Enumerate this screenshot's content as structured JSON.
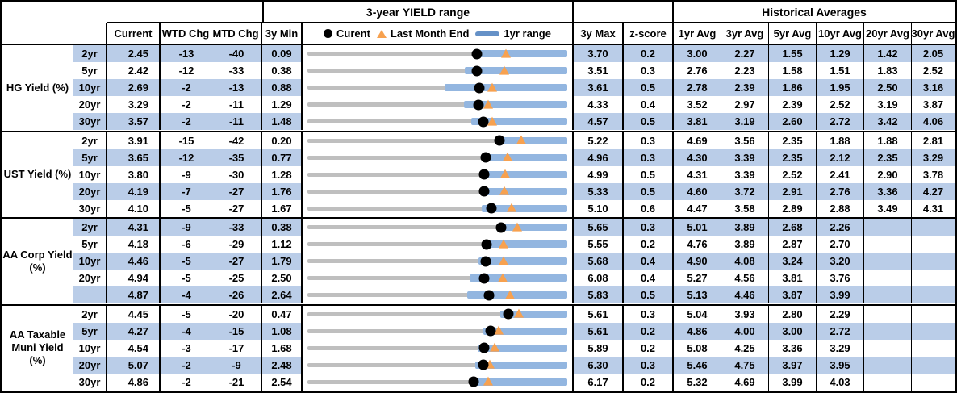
{
  "table": {
    "colors": {
      "row_band": "#bacde8",
      "bar_blue": "#93b6e0",
      "legend_blue": "#6591c7",
      "track_gray": "#bfbfbf",
      "marker_orange": "#f7a14f",
      "marker_black": "#000000"
    },
    "group_headers": {
      "range_title": "3-year YIELD range",
      "historical_title": "Historical Averages"
    },
    "col_headers": {
      "current": "Current",
      "wtd_chg": "WTD Chg",
      "mtd_chg": "MTD Chg",
      "min_3y": "3y Min",
      "max_3y": "3y Max",
      "z_score": "z-score",
      "averages": [
        "1yr Avg",
        "3yr Avg",
        "5yr Avg",
        "10yr Avg",
        "20yr Avg",
        "30yr Avg"
      ]
    },
    "legend": {
      "current": "Curent",
      "last_month_end": "Last Month End",
      "one_yr_range": "1yr range"
    }
  },
  "chart_data": {
    "type": "table",
    "title": "3-year YIELD range",
    "description": "Each row shows a 3-year yield range track (gray) from 3y Min to 3y Max, an overlaid 1yr range bar (blue) ending at the 3y Max, a black dot for Current and an orange triangle for Last Month End. WTD/MTD changes are in basis points.",
    "legend": [
      "Curent",
      "Last Month End",
      "1yr range"
    ],
    "sections": [
      {
        "label": "HG Yield (%)",
        "rows": [
          {
            "tenor": "2yr",
            "current": "2.45",
            "wtd": "-13",
            "mtd": "-40",
            "min": "0.09",
            "max": "3.70",
            "z": "0.2",
            "avg": [
              "3.00",
              "2.27",
              "1.55",
              "1.29",
              "1.42",
              "2.05"
            ],
            "last_month_end": 2.85,
            "yr1_low": 2.39
          },
          {
            "tenor": "5yr",
            "current": "2.42",
            "wtd": "-12",
            "mtd": "-33",
            "min": "0.38",
            "max": "3.51",
            "z": "0.3",
            "avg": [
              "2.76",
              "2.23",
              "1.58",
              "1.51",
              "1.83",
              "2.52"
            ],
            "last_month_end": 2.75,
            "yr1_low": 2.28
          },
          {
            "tenor": "10yr",
            "current": "2.69",
            "wtd": "-2",
            "mtd": "-13",
            "min": "0.88",
            "max": "3.61",
            "z": "0.5",
            "avg": [
              "2.78",
              "2.39",
              "1.86",
              "1.95",
              "2.50",
              "3.16"
            ],
            "last_month_end": 2.82,
            "yr1_low": 2.32
          },
          {
            "tenor": "20yr",
            "current": "3.29",
            "wtd": "-2",
            "mtd": "-11",
            "min": "1.29",
            "max": "4.33",
            "z": "0.4",
            "avg": [
              "3.52",
              "2.97",
              "2.39",
              "2.52",
              "3.19",
              "3.87"
            ],
            "last_month_end": 3.4,
            "yr1_low": 3.12
          },
          {
            "tenor": "30yr",
            "current": "3.57",
            "wtd": "-2",
            "mtd": "-11",
            "min": "1.48",
            "max": "4.57",
            "z": "0.5",
            "avg": [
              "3.81",
              "3.19",
              "2.60",
              "2.72",
              "3.42",
              "4.06"
            ],
            "last_month_end": 3.68,
            "yr1_low": 3.43
          }
        ]
      },
      {
        "label": "UST Yield (%)",
        "rows": [
          {
            "tenor": "2yr",
            "current": "3.91",
            "wtd": "-15",
            "mtd": "-42",
            "min": "0.20",
            "max": "5.22",
            "z": "0.3",
            "avg": [
              "4.69",
              "3.56",
              "2.35",
              "1.88",
              "1.88",
              "2.81"
            ],
            "last_month_end": 4.33,
            "yr1_low": 3.87
          },
          {
            "tenor": "5yr",
            "current": "3.65",
            "wtd": "-12",
            "mtd": "-35",
            "min": "0.77",
            "max": "4.96",
            "z": "0.3",
            "avg": [
              "4.30",
              "3.39",
              "2.35",
              "2.12",
              "2.35",
              "3.29"
            ],
            "last_month_end": 4.0,
            "yr1_low": 3.63
          },
          {
            "tenor": "10yr",
            "current": "3.80",
            "wtd": "-9",
            "mtd": "-30",
            "min": "1.28",
            "max": "4.99",
            "z": "0.5",
            "avg": [
              "4.31",
              "3.39",
              "2.52",
              "2.41",
              "2.90",
              "3.78"
            ],
            "last_month_end": 4.1,
            "yr1_low": 3.76
          },
          {
            "tenor": "20yr",
            "current": "4.19",
            "wtd": "-7",
            "mtd": "-27",
            "min": "1.76",
            "max": "5.33",
            "z": "0.5",
            "avg": [
              "4.60",
              "3.72",
              "2.91",
              "2.76",
              "3.36",
              "4.27"
            ],
            "last_month_end": 4.46,
            "yr1_low": 4.13
          },
          {
            "tenor": "30yr",
            "current": "4.10",
            "wtd": "-5",
            "mtd": "-27",
            "min": "1.67",
            "max": "5.10",
            "z": "0.6",
            "avg": [
              "4.47",
              "3.58",
              "2.89",
              "2.88",
              "3.49",
              "4.31"
            ],
            "last_month_end": 4.37,
            "yr1_low": 3.97
          }
        ]
      },
      {
        "label": "AA Corp Yield\n(%)",
        "rows": [
          {
            "tenor": "2yr",
            "current": "4.31",
            "wtd": "-9",
            "mtd": "-33",
            "min": "0.38",
            "max": "5.65",
            "z": "0.3",
            "avg": [
              "5.01",
              "3.89",
              "2.68",
              "2.26",
              "",
              ""
            ],
            "last_month_end": 4.64,
            "yr1_low": 4.26
          },
          {
            "tenor": "5yr",
            "current": "4.18",
            "wtd": "-6",
            "mtd": "-29",
            "min": "1.12",
            "max": "5.55",
            "z": "0.2",
            "avg": [
              "4.76",
              "3.89",
              "2.87",
              "2.70",
              "",
              ""
            ],
            "last_month_end": 4.47,
            "yr1_low": 4.15
          },
          {
            "tenor": "10yr",
            "current": "4.46",
            "wtd": "-5",
            "mtd": "-27",
            "min": "1.79",
            "max": "5.68",
            "z": "0.4",
            "avg": [
              "4.90",
              "4.08",
              "3.24",
              "3.20",
              "",
              ""
            ],
            "last_month_end": 4.73,
            "yr1_low": 4.35
          },
          {
            "tenor": "20yr",
            "current": "4.94",
            "wtd": "-5",
            "mtd": "-25",
            "min": "2.50",
            "max": "6.08",
            "z": "0.4",
            "avg": [
              "5.27",
              "4.56",
              "3.81",
              "3.76",
              "",
              ""
            ],
            "last_month_end": 5.19,
            "yr1_low": 4.74
          },
          {
            "tenor": "",
            "current": "4.87",
            "wtd": "-4",
            "mtd": "-26",
            "min": "2.64",
            "max": "5.83",
            "z": "0.5",
            "avg": [
              "5.13",
              "4.46",
              "3.87",
              "3.99",
              "",
              ""
            ],
            "last_month_end": 5.13,
            "yr1_low": 4.6
          }
        ]
      },
      {
        "label": "AA Taxable\nMuni Yield\n(%)",
        "rows": [
          {
            "tenor": "2yr",
            "current": "4.45",
            "wtd": "-5",
            "mtd": "-20",
            "min": "0.47",
            "max": "5.61",
            "z": "0.3",
            "avg": [
              "5.04",
              "3.93",
              "2.80",
              "2.29",
              "",
              ""
            ],
            "last_month_end": 4.65,
            "yr1_low": 4.28
          },
          {
            "tenor": "5yr",
            "current": "4.27",
            "wtd": "-4",
            "mtd": "-15",
            "min": "1.08",
            "max": "5.61",
            "z": "0.2",
            "avg": [
              "4.86",
              "4.00",
              "3.00",
              "2.72",
              "",
              ""
            ],
            "last_month_end": 4.42,
            "yr1_low": 4.14
          },
          {
            "tenor": "10yr",
            "current": "4.54",
            "wtd": "-3",
            "mtd": "-17",
            "min": "1.68",
            "max": "5.89",
            "z": "0.2",
            "avg": [
              "5.08",
              "4.25",
              "3.36",
              "3.29",
              "",
              ""
            ],
            "last_month_end": 4.71,
            "yr1_low": 4.44
          },
          {
            "tenor": "20yr",
            "current": "5.07",
            "wtd": "-2",
            "mtd": "-9",
            "min": "2.48",
            "max": "6.30",
            "z": "0.3",
            "avg": [
              "5.46",
              "4.75",
              "3.97",
              "3.95",
              "",
              ""
            ],
            "last_month_end": 5.16,
            "yr1_low": 4.95
          },
          {
            "tenor": "30yr",
            "current": "4.86",
            "wtd": "-2",
            "mtd": "-21",
            "min": "2.54",
            "max": "6.17",
            "z": "0.2",
            "avg": [
              "5.32",
              "4.69",
              "3.99",
              "4.03",
              "",
              ""
            ],
            "last_month_end": 5.07,
            "yr1_low": 4.82
          }
        ]
      }
    ]
  }
}
